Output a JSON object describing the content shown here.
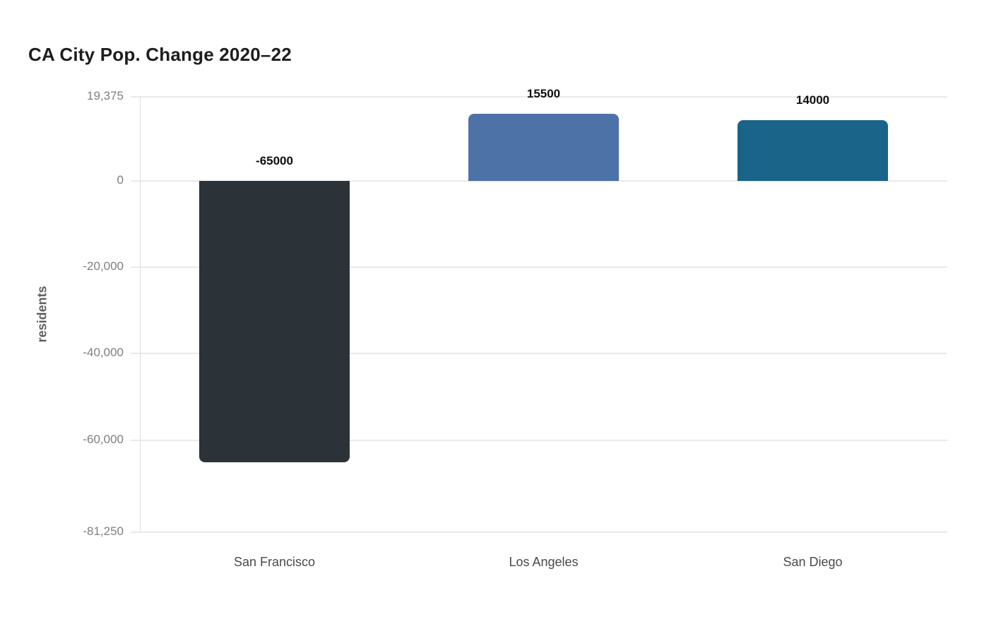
{
  "chart_data": {
    "type": "bar",
    "title": "CA City Pop. Change 2020–22",
    "xlabel": "",
    "ylabel": "residents",
    "categories": [
      "San Francisco",
      "Los Angeles",
      "San Diego"
    ],
    "values": [
      -65000,
      15500,
      14000
    ],
    "bar_value_labels": [
      "-65000",
      "15500",
      "14000"
    ],
    "bar_colors": [
      "#2b3339",
      "#4c72a8",
      "#1a6489"
    ],
    "ylim": [
      -81250,
      19375
    ],
    "yticks": [
      {
        "value": 19375,
        "label": "19,375"
      },
      {
        "value": 0,
        "label": "0"
      },
      {
        "value": -20000,
        "label": "-20,000"
      },
      {
        "value": -40000,
        "label": "-40,000"
      },
      {
        "value": -60000,
        "label": "-60,000"
      },
      {
        "value": -81250,
        "label": "-81,250"
      }
    ],
    "grid": true,
    "legend": false,
    "colors": {
      "gridline": "#e9e9e9",
      "axis_line": "#dedede",
      "tick_text": "#7f7f7f",
      "category_text": "#4a4a4a",
      "value_label_text": "#101010",
      "title_text": "#1d1d1d",
      "background": "#ffffff"
    }
  }
}
